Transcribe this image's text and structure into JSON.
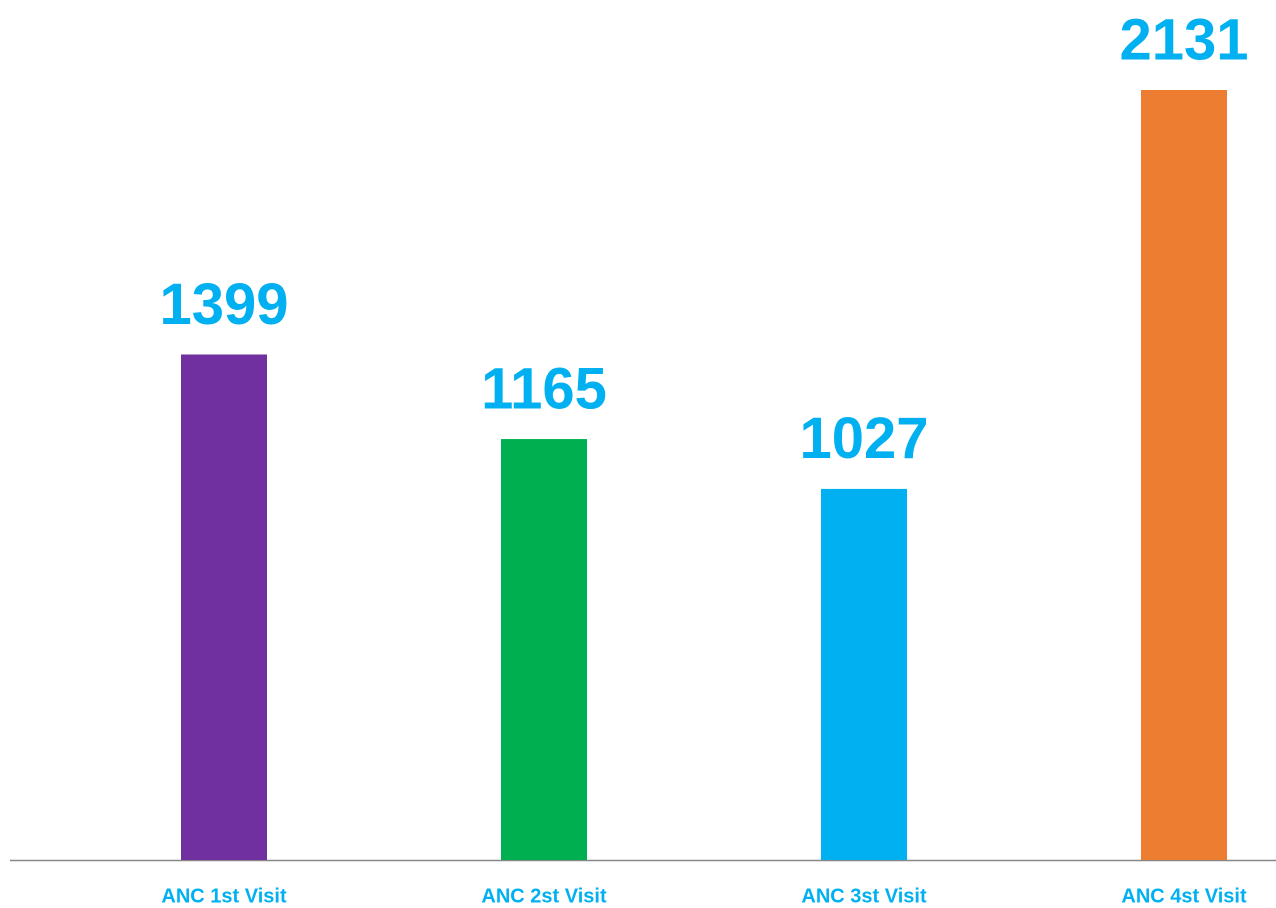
{
  "chart_data": {
    "type": "bar",
    "categories": [
      "ANC 1st Visit",
      "ANC 2st Visit",
      "ANC 3st Visit",
      "ANC 4st Visit"
    ],
    "values": [
      1399,
      1165,
      1027,
      2131
    ],
    "colors": [
      "#7030a0",
      "#00b050",
      "#00b0f0",
      "#ed7d31"
    ],
    "grid": false
  }
}
